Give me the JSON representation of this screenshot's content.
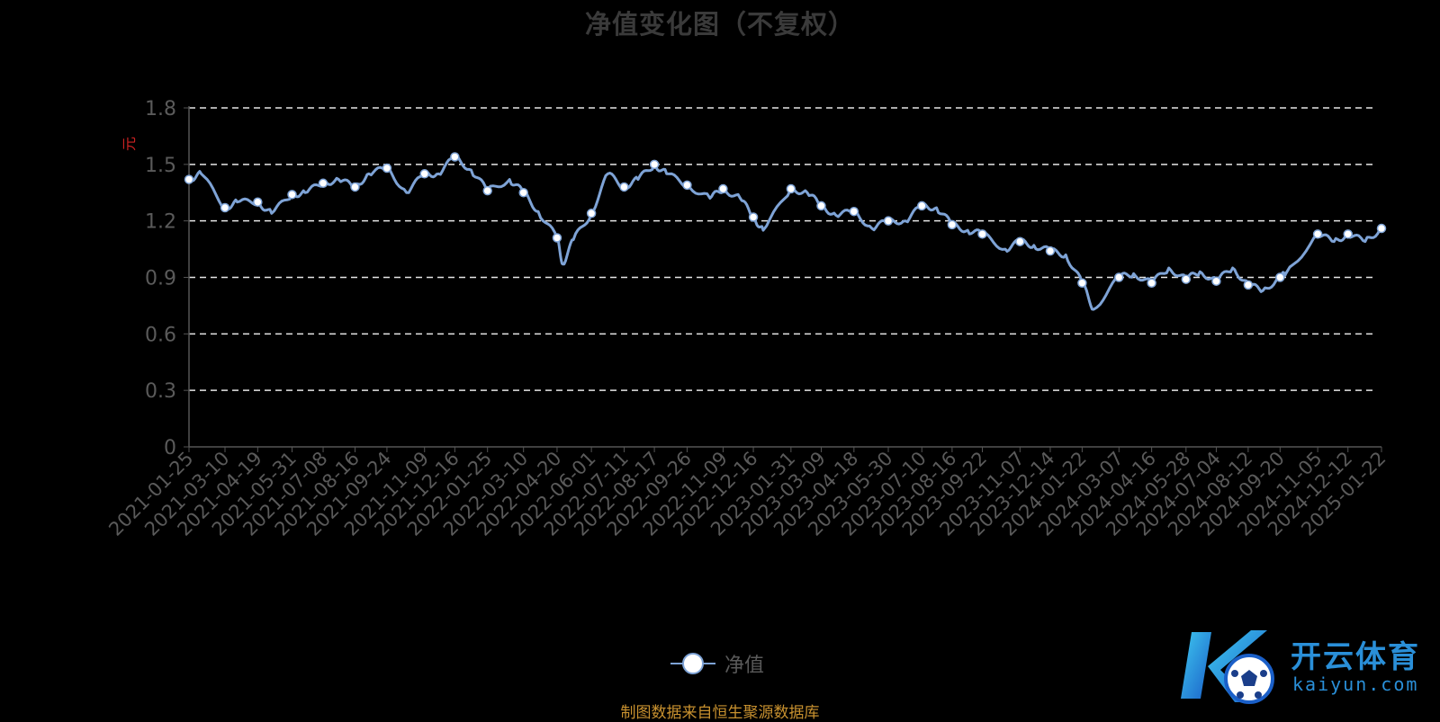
{
  "chart_data": {
    "type": "line",
    "title": "净值变化图（不复权）",
    "ylabel": "元",
    "ylim": [
      0,
      1.8
    ],
    "yticks": [
      "0",
      "0.3",
      "0.6",
      "0.9",
      "1.2",
      "1.5",
      "1.8"
    ],
    "grid": true,
    "legend_position": "bottom",
    "x_tick_labels": [
      "2021-01-25",
      "2021-03-10",
      "2021-04-19",
      "2021-05-31",
      "2021-07-08",
      "2021-08-16",
      "2021-09-24",
      "2021-11-09",
      "2021-12-16",
      "2022-01-25",
      "2022-03-10",
      "2022-04-20",
      "2022-06-01",
      "2022-07-11",
      "2022-08-17",
      "2022-09-26",
      "2022-11-09",
      "2022-12-16",
      "2023-01-31",
      "2023-03-09",
      "2023-04-18",
      "2023-05-30",
      "2023-07-10",
      "2023-08-16",
      "2023-09-22",
      "2023-11-07",
      "2023-12-14",
      "2024-01-22",
      "2024-03-07",
      "2024-04-16",
      "2024-05-28",
      "2024-07-04",
      "2024-08-12",
      "2024-09-20",
      "2024-11-05",
      "2024-12-12",
      "2025-01-22"
    ],
    "series": [
      {
        "name": "净值",
        "x": [
          "2021-01-25",
          "2021-02-09",
          "2021-03-10",
          "2021-03-25",
          "2021-04-19",
          "2021-05-06",
          "2021-05-31",
          "2021-06-16",
          "2021-07-08",
          "2021-07-27",
          "2021-08-16",
          "2021-09-02",
          "2021-09-24",
          "2021-10-18",
          "2021-11-09",
          "2021-11-26",
          "2021-12-16",
          "2022-01-05",
          "2022-01-25",
          "2022-02-21",
          "2022-03-10",
          "2022-03-28",
          "2022-04-20",
          "2022-04-27",
          "2022-05-10",
          "2022-06-01",
          "2022-06-21",
          "2022-07-11",
          "2022-07-28",
          "2022-08-17",
          "2022-09-01",
          "2022-09-26",
          "2022-10-24",
          "2022-11-09",
          "2022-11-30",
          "2022-12-16",
          "2022-12-28",
          "2023-01-31",
          "2023-02-20",
          "2023-03-09",
          "2023-03-27",
          "2023-04-18",
          "2023-05-10",
          "2023-05-30",
          "2023-06-20",
          "2023-07-10",
          "2023-07-28",
          "2023-08-16",
          "2023-09-04",
          "2023-09-22",
          "2023-10-20",
          "2023-11-07",
          "2023-11-24",
          "2023-12-14",
          "2024-01-02",
          "2024-01-22",
          "2024-02-05",
          "2024-03-07",
          "2024-03-25",
          "2024-04-16",
          "2024-05-07",
          "2024-05-28",
          "2024-06-14",
          "2024-07-04",
          "2024-07-24",
          "2024-08-12",
          "2024-08-30",
          "2024-09-20",
          "2024-09-27",
          "2024-11-05",
          "2024-11-25",
          "2024-12-12",
          "2025-01-02",
          "2025-01-22"
        ],
        "values": [
          1.42,
          1.45,
          1.27,
          1.3,
          1.3,
          1.24,
          1.34,
          1.35,
          1.4,
          1.42,
          1.38,
          1.45,
          1.48,
          1.35,
          1.45,
          1.45,
          1.54,
          1.47,
          1.36,
          1.42,
          1.35,
          1.25,
          1.11,
          0.97,
          1.1,
          1.24,
          1.45,
          1.38,
          1.42,
          1.5,
          1.45,
          1.39,
          1.32,
          1.37,
          1.32,
          1.22,
          1.15,
          1.37,
          1.35,
          1.28,
          1.23,
          1.25,
          1.16,
          1.2,
          1.2,
          1.28,
          1.27,
          1.18,
          1.15,
          1.13,
          1.05,
          1.09,
          1.07,
          1.04,
          1.02,
          0.87,
          0.73,
          0.9,
          0.92,
          0.87,
          0.95,
          0.89,
          0.93,
          0.88,
          0.95,
          0.86,
          0.83,
          0.9,
          0.92,
          1.13,
          1.09,
          1.13,
          1.09,
          1.16
        ],
        "marker_dates": [
          "2021-01-25",
          "2021-03-10",
          "2021-04-19",
          "2021-05-31",
          "2021-07-08",
          "2021-08-16",
          "2021-09-24",
          "2021-11-09",
          "2021-12-16",
          "2022-01-25",
          "2022-03-10",
          "2022-04-20",
          "2022-06-01",
          "2022-07-11",
          "2022-08-17",
          "2022-09-26",
          "2022-11-09",
          "2022-12-16",
          "2023-01-31",
          "2023-03-09",
          "2023-04-18",
          "2023-05-30",
          "2023-07-10",
          "2023-08-16",
          "2023-09-22",
          "2023-11-07",
          "2023-12-14",
          "2024-01-22",
          "2024-03-07",
          "2024-04-16",
          "2024-05-28",
          "2024-07-04",
          "2024-08-12",
          "2024-09-20",
          "2024-11-05",
          "2024-12-12",
          "2025-01-22"
        ],
        "color": "#7ea3d6"
      }
    ]
  },
  "source_note": "制图数据来自恒生聚源数据库",
  "watermark": {
    "brand": "开云体育",
    "url": "kaiyun.com",
    "icon": "k-football-logo-icon"
  }
}
